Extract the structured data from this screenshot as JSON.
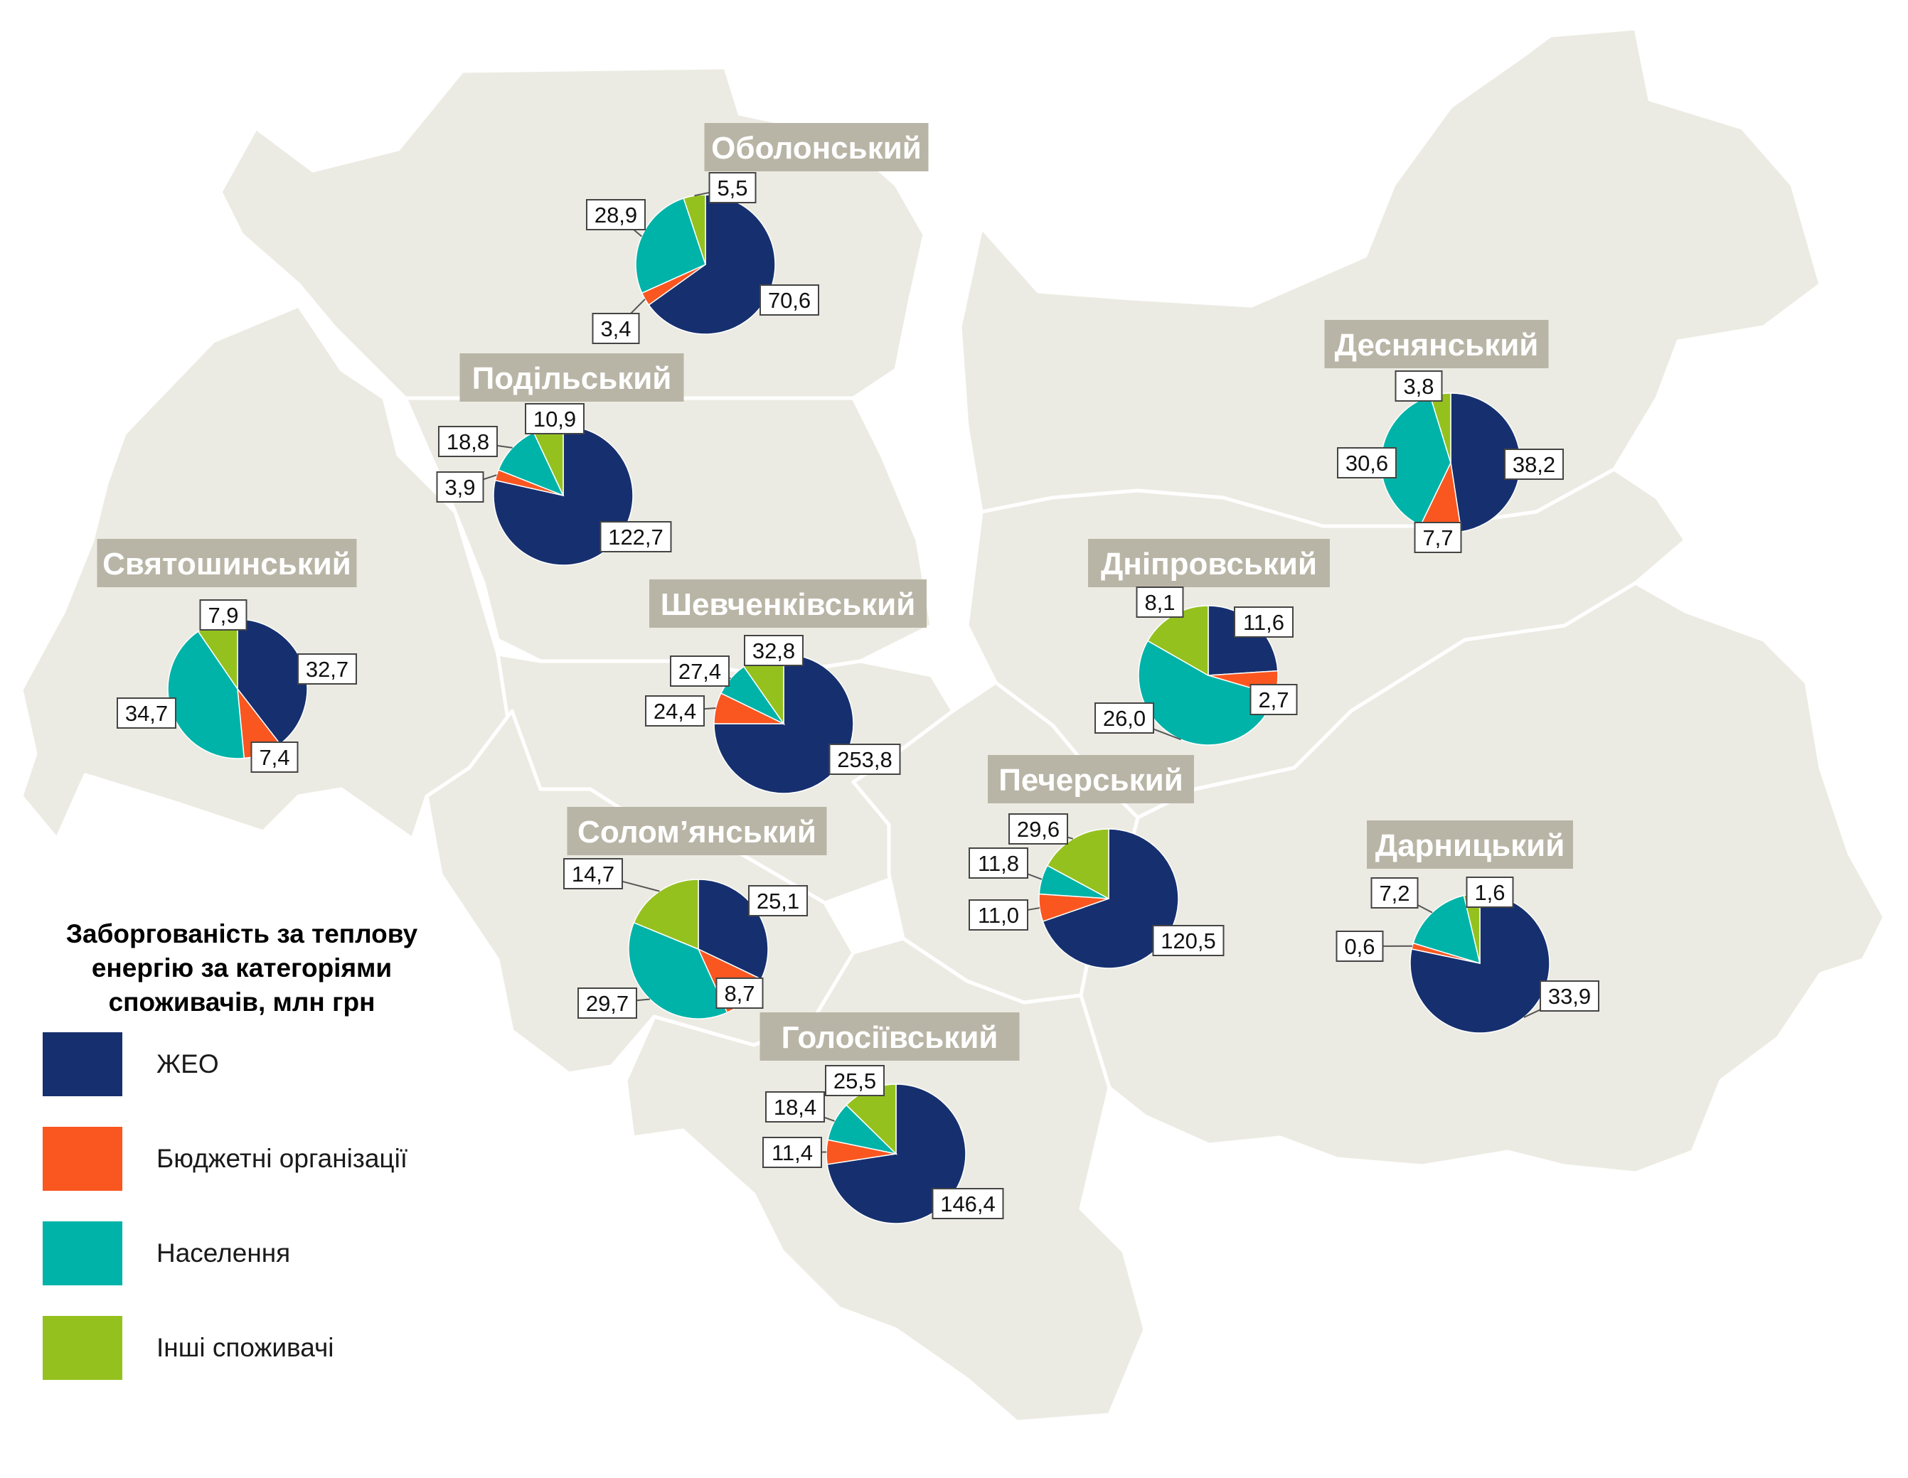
{
  "legend": {
    "title_lines": [
      "Заборгованість за теплову",
      "енергію за категоріями",
      "споживачів, млн грн"
    ],
    "items": [
      {
        "key": "zheo",
        "label": "ЖЕО",
        "color": "#16306f"
      },
      {
        "key": "budget",
        "label": "Бюджетні організації",
        "color": "#fa5620"
      },
      {
        "key": "population",
        "label": "Населення",
        "color": "#00b3a8"
      },
      {
        "key": "other",
        "label": "Інші споживачі",
        "color": "#95c11f"
      }
    ]
  },
  "districts": [
    {
      "name": "Оболонський",
      "values": {
        "zheo": 70.6,
        "budget": 3.4,
        "population": 28.9,
        "other": 5.5
      },
      "labels": {
        "zheo": "70,6",
        "budget": "3,4",
        "population": "28,9",
        "other": "5,5"
      }
    },
    {
      "name": "Подільський",
      "values": {
        "zheo": 122.7,
        "budget": 3.9,
        "population": 18.8,
        "other": 10.9
      },
      "labels": {
        "zheo": "122,7",
        "budget": "3,9",
        "population": "18,8",
        "other": "10,9"
      }
    },
    {
      "name": "Святошинський",
      "values": {
        "zheo": 32.7,
        "budget": 7.4,
        "population": 34.7,
        "other": 7.9
      },
      "labels": {
        "zheo": "32,7",
        "budget": "7,4",
        "population": "34,7",
        "other": "7,9"
      }
    },
    {
      "name": "Шевченківський",
      "values": {
        "zheo": 253.8,
        "budget": 24.4,
        "population": 27.4,
        "other": 32.8
      },
      "labels": {
        "zheo": "253,8",
        "budget": "24,4",
        "population": "27,4",
        "other": "32,8"
      }
    },
    {
      "name": "Солом’янський",
      "values": {
        "zheo": 25.1,
        "budget": 8.7,
        "population": 29.7,
        "other": 14.7
      },
      "labels": {
        "zheo": "25,1",
        "budget": "8,7",
        "population": "29,7",
        "other": "14,7"
      }
    },
    {
      "name": "Голосіївський",
      "values": {
        "zheo": 146.4,
        "budget": 11.4,
        "population": 18.4,
        "other": 25.5
      },
      "labels": {
        "zheo": "146,4",
        "budget": "11,4",
        "population": "18,4",
        "other": "25,5"
      }
    },
    {
      "name": "Печерський",
      "values": {
        "zheo": 120.5,
        "budget": 11.0,
        "population": 11.8,
        "other": 29.6
      },
      "labels": {
        "zheo": "120,5",
        "budget": "11,0",
        "population": "11,8",
        "other": "29,6"
      }
    },
    {
      "name": "Дніпровський",
      "values": {
        "zheo": 11.6,
        "budget": 2.7,
        "population": 26.0,
        "other": 8.1
      },
      "labels": {
        "zheo": "11,6",
        "budget": "2,7",
        "population": "26,0",
        "other": "8,1"
      }
    },
    {
      "name": "Деснянський",
      "values": {
        "zheo": 38.2,
        "budget": 7.7,
        "population": 30.6,
        "other": 3.8
      },
      "labels": {
        "zheo": "38,2",
        "budget": "7,7",
        "population": "30,6",
        "other": "3,8"
      }
    },
    {
      "name": "Дарницький",
      "values": {
        "zheo": 33.9,
        "budget": 0.6,
        "population": 7.2,
        "other": 1.6
      },
      "labels": {
        "zheo": "33,9",
        "budget": "0,6",
        "population": "7,2",
        "other": "1,6"
      }
    }
  ]
}
